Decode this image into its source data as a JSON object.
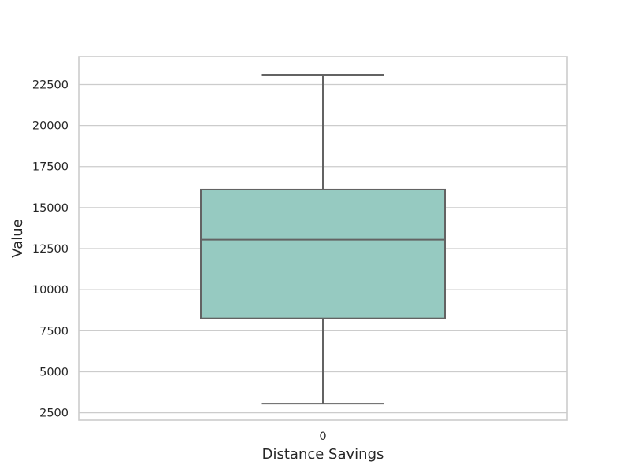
{
  "chart_data": {
    "type": "box",
    "title": "",
    "xlabel": "Distance Savings",
    "ylabel": "Value",
    "categories": [
      "0"
    ],
    "boxes": [
      {
        "category": "0",
        "whisker_low": 3050,
        "q1": 8250,
        "median": 13050,
        "q3": 16100,
        "whisker_high": 23100
      }
    ],
    "yticks": [
      2500,
      5000,
      7500,
      10000,
      12500,
      15000,
      17500,
      20000,
      22500
    ],
    "ylim": [
      2050,
      24200
    ],
    "grid": true,
    "colors": {
      "box_fill": "#96cac1",
      "box_edge": "#636363",
      "grid": "#cccccc",
      "frame": "#cccccc",
      "text": "#262626"
    }
  }
}
